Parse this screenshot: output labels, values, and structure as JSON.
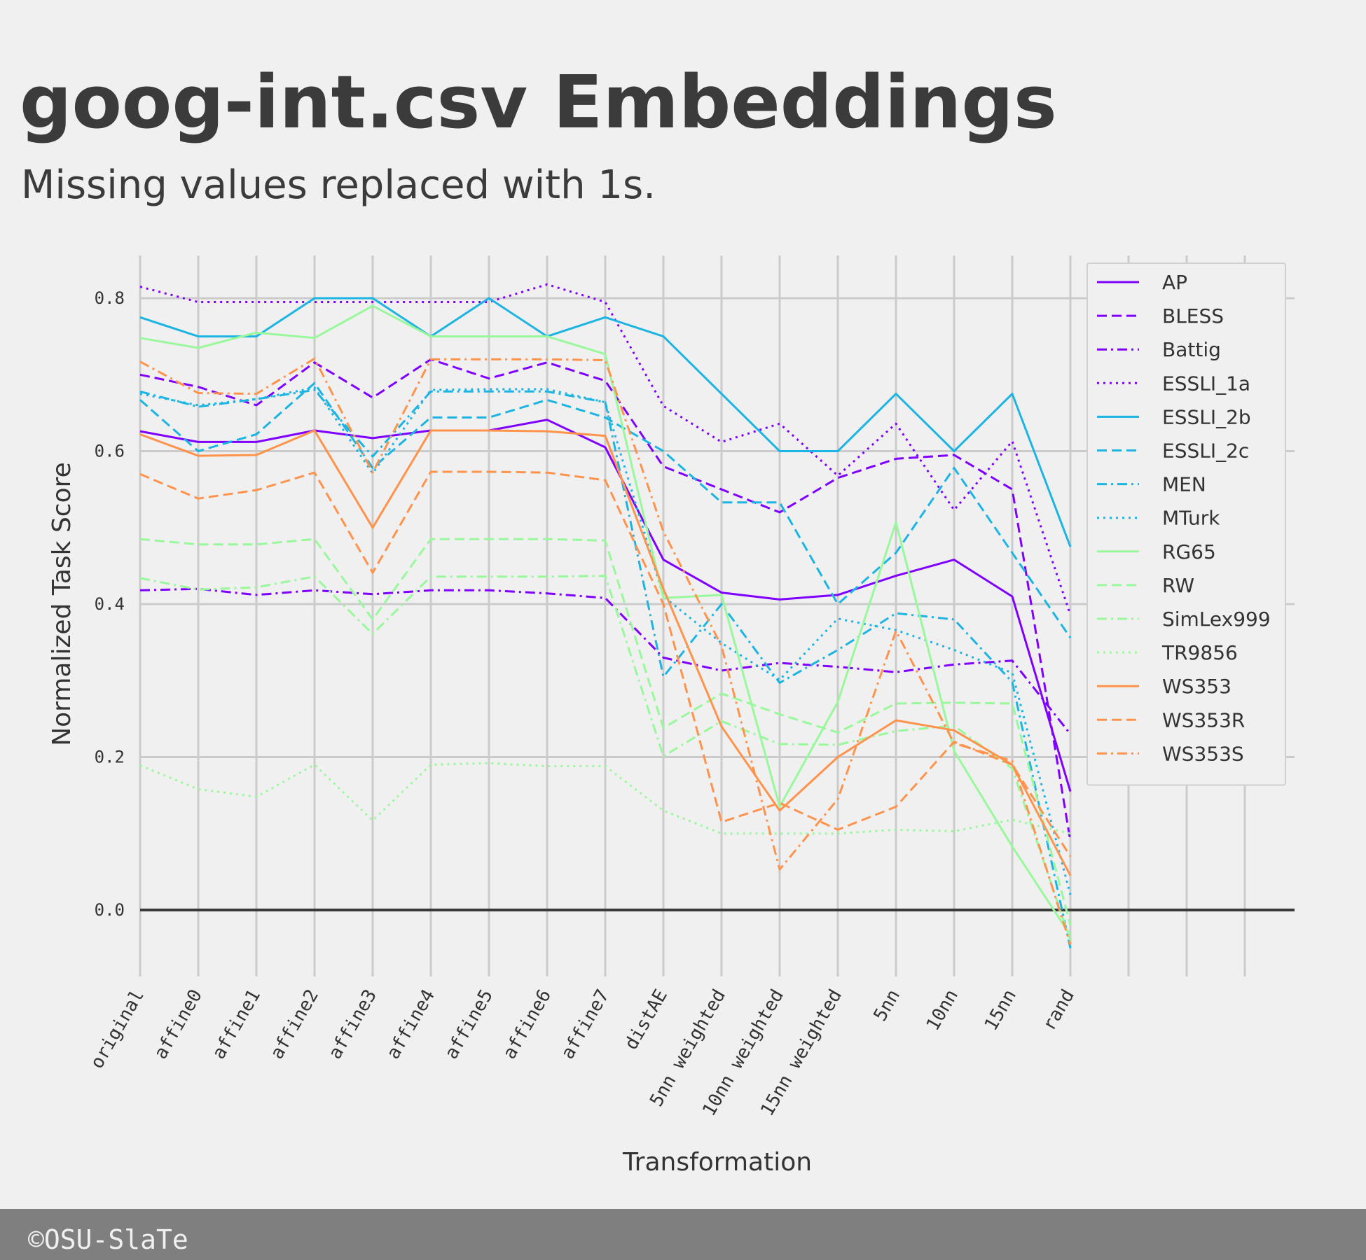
{
  "chart_data": {
    "type": "line",
    "title": "goog-int.csv Embeddings",
    "subtitle": "Missing values replaced with 1s.",
    "xlabel": "Transformation",
    "ylabel": "Normalized Task Score",
    "categories": [
      "original",
      "affine0",
      "affine1",
      "affine2",
      "affine3",
      "affine4",
      "affine5",
      "affine6",
      "affine7",
      "distAE",
      "5nn weighted",
      "10nn weighted",
      "15nn weighted",
      "5nn",
      "10nn",
      "15nn",
      "rand"
    ],
    "ylim": [
      -0.09,
      0.86
    ],
    "yticks": [
      "0.0",
      "0.2",
      "0.4",
      "0.6",
      "0.8"
    ],
    "grid": true,
    "legend_position": "top-right",
    "series": [
      {
        "name": "AP",
        "color": "#7f00ff",
        "dash": "solid",
        "values": [
          0.626,
          0.612,
          0.612,
          0.627,
          0.617,
          0.627,
          0.627,
          0.641,
          0.605,
          0.458,
          0.415,
          0.406,
          0.412,
          0.437,
          0.458,
          0.41,
          0.155
        ]
      },
      {
        "name": "BLESS",
        "color": "#7f00ff",
        "dash": "dashed",
        "values": [
          0.7,
          0.684,
          0.66,
          0.716,
          0.67,
          0.72,
          0.695,
          0.716,
          0.692,
          0.58,
          0.55,
          0.52,
          0.565,
          0.59,
          0.595,
          0.55,
          0.09
        ]
      },
      {
        "name": "Battig",
        "color": "#7f00ff",
        "dash": "dashdot",
        "values": [
          0.418,
          0.42,
          0.412,
          0.418,
          0.413,
          0.418,
          0.418,
          0.414,
          0.408,
          0.33,
          0.313,
          0.323,
          0.318,
          0.311,
          0.321,
          0.326,
          0.23
        ]
      },
      {
        "name": "ESSLI_1a",
        "color": "#7f00ff",
        "dash": "dotted",
        "values": [
          0.815,
          0.795,
          0.795,
          0.795,
          0.795,
          0.795,
          0.795,
          0.818,
          0.795,
          0.659,
          0.612,
          0.636,
          0.568,
          0.636,
          0.523,
          0.613,
          0.386
        ]
      },
      {
        "name": "ESSLI_2b",
        "color": "#1cb4e2",
        "dash": "solid",
        "values": [
          0.775,
          0.75,
          0.75,
          0.8,
          0.8,
          0.75,
          0.8,
          0.75,
          0.775,
          0.75,
          0.675,
          0.6,
          0.6,
          0.675,
          0.6,
          0.675,
          0.475
        ]
      },
      {
        "name": "ESSLI_2c",
        "color": "#1cb4e2",
        "dash": "dashed",
        "values": [
          0.667,
          0.6,
          0.622,
          0.689,
          0.578,
          0.644,
          0.644,
          0.667,
          0.644,
          0.6,
          0.533,
          0.533,
          0.4,
          0.467,
          0.578,
          0.467,
          0.356
        ]
      },
      {
        "name": "MEN",
        "color": "#1cb4e2",
        "dash": "dashdot",
        "values": [
          0.678,
          0.658,
          0.668,
          0.68,
          0.593,
          0.678,
          0.678,
          0.678,
          0.664,
          0.305,
          0.4,
          0.297,
          0.34,
          0.388,
          0.38,
          0.298,
          -0.05
        ]
      },
      {
        "name": "MTurk",
        "color": "#1cb4e2",
        "dash": "dotted",
        "values": [
          0.675,
          0.66,
          0.668,
          0.683,
          0.571,
          0.68,
          0.681,
          0.681,
          0.664,
          0.41,
          0.349,
          0.301,
          0.381,
          0.366,
          0.34,
          0.31,
          0.02
        ]
      },
      {
        "name": "RG65",
        "color": "#99f89c",
        "dash": "solid",
        "values": [
          0.748,
          0.735,
          0.755,
          0.748,
          0.79,
          0.75,
          0.75,
          0.75,
          0.727,
          0.408,
          0.412,
          0.135,
          0.272,
          0.507,
          0.208,
          0.083,
          -0.033
        ]
      },
      {
        "name": "RW",
        "color": "#99f89c",
        "dash": "dashed",
        "values": [
          0.485,
          0.478,
          0.478,
          0.485,
          0.38,
          0.485,
          0.485,
          0.485,
          0.483,
          0.238,
          0.283,
          0.256,
          0.232,
          0.27,
          0.271,
          0.27,
          -0.02
        ]
      },
      {
        "name": "SimLex999",
        "color": "#99f89c",
        "dash": "dashdot",
        "values": [
          0.434,
          0.419,
          0.422,
          0.436,
          0.361,
          0.436,
          0.436,
          0.436,
          0.437,
          0.201,
          0.247,
          0.217,
          0.216,
          0.234,
          0.241,
          0.185,
          -0.04
        ]
      },
      {
        "name": "TR9856",
        "color": "#99f89c",
        "dash": "dotted",
        "values": [
          0.189,
          0.158,
          0.148,
          0.19,
          0.117,
          0.19,
          0.192,
          0.188,
          0.188,
          0.13,
          0.1,
          0.1,
          0.1,
          0.105,
          0.103,
          0.118,
          0.1
        ]
      },
      {
        "name": "WS353",
        "color": "#ff934c",
        "dash": "solid",
        "values": [
          0.622,
          0.594,
          0.595,
          0.627,
          0.5,
          0.627,
          0.627,
          0.626,
          0.62,
          0.42,
          0.24,
          0.13,
          0.2,
          0.248,
          0.235,
          0.19,
          0.045
        ]
      },
      {
        "name": "WS353R",
        "color": "#ff934c",
        "dash": "dashed",
        "values": [
          0.57,
          0.538,
          0.549,
          0.572,
          0.441,
          0.573,
          0.573,
          0.572,
          0.562,
          0.4,
          0.115,
          0.14,
          0.105,
          0.135,
          0.22,
          0.19,
          0.07
        ]
      },
      {
        "name": "WS353S",
        "color": "#ff934c",
        "dash": "dashdot",
        "values": [
          0.717,
          0.676,
          0.675,
          0.721,
          0.572,
          0.72,
          0.72,
          0.72,
          0.719,
          0.495,
          0.345,
          0.053,
          0.145,
          0.365,
          0.218,
          0.195,
          -0.045
        ]
      }
    ]
  },
  "footer": {
    "text": "©OSU-SlaTe"
  }
}
